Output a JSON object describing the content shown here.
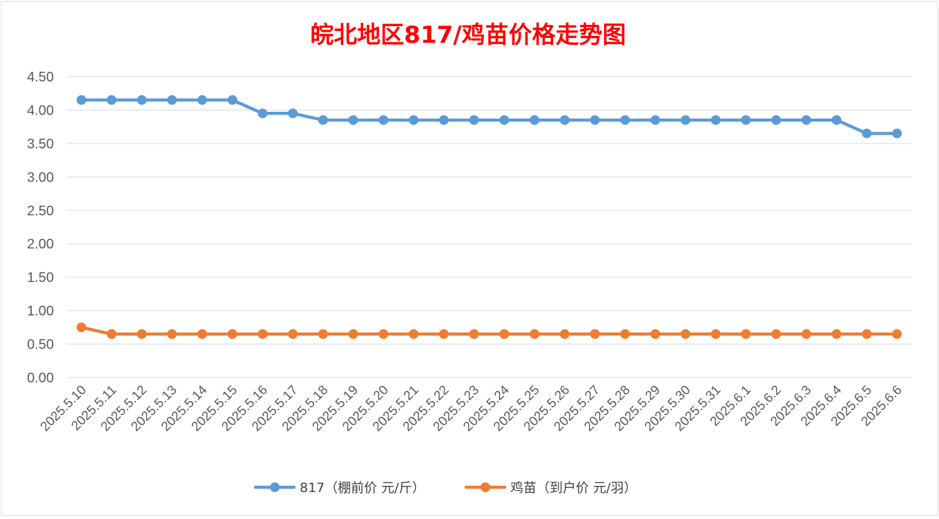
{
  "chart_data": {
    "type": "line",
    "title": "皖北地区817/鸡苗价格走势图",
    "xlabel": "",
    "ylabel": "",
    "ylim": [
      0,
      4.5
    ],
    "yticks": [
      "0.00",
      "0.50",
      "1.00",
      "1.50",
      "2.00",
      "2.50",
      "3.00",
      "3.50",
      "4.00",
      "4.50"
    ],
    "grid": true,
    "legend_position": "bottom",
    "categories": [
      "2025.5.10",
      "2025.5.11",
      "2025.5.12",
      "2025.5.13",
      "2025.5.14",
      "2025.5.15",
      "2025.5.16",
      "2025.5.17",
      "2025.5.18",
      "2025.5.19",
      "2025.5.20",
      "2025.5.21",
      "2025.5.22",
      "2025.5.23",
      "2025.5.24",
      "2025.5.25",
      "2025.5.26",
      "2025.5.27",
      "2025.5.28",
      "2025.5.29",
      "2025.5.30",
      "2025.5.31",
      "2025.6.1",
      "2025.6.2",
      "2025.6.3",
      "2025.6.4",
      "2025.6.5",
      "2025.6.6"
    ],
    "series": [
      {
        "name": "817（棚前价 元/斤）",
        "color": "#5b9bd5",
        "values": [
          4.15,
          4.15,
          4.15,
          4.15,
          4.15,
          4.15,
          3.95,
          3.95,
          3.85,
          3.85,
          3.85,
          3.85,
          3.85,
          3.85,
          3.85,
          3.85,
          3.85,
          3.85,
          3.85,
          3.85,
          3.85,
          3.85,
          3.85,
          3.85,
          3.85,
          3.85,
          3.65,
          3.65
        ]
      },
      {
        "name": "鸡苗（到户价 元/羽）",
        "color": "#ed7d31",
        "values": [
          0.75,
          0.65,
          0.65,
          0.65,
          0.65,
          0.65,
          0.65,
          0.65,
          0.65,
          0.65,
          0.65,
          0.65,
          0.65,
          0.65,
          0.65,
          0.65,
          0.65,
          0.65,
          0.65,
          0.65,
          0.65,
          0.65,
          0.65,
          0.65,
          0.65,
          0.65,
          0.65,
          0.65
        ]
      }
    ]
  }
}
